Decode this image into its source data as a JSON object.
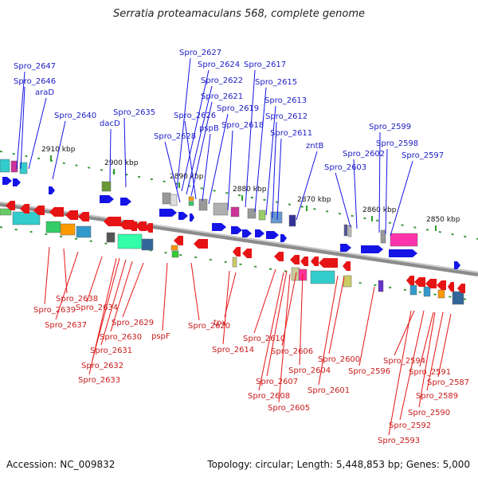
{
  "title": "Serratia proteamaculans 568, complete genome",
  "footer": {
    "accession": "Accession: NC_009832",
    "summary": "Topology: circular; Length: 5,448,853 bp; Genes: 5,000"
  },
  "ticks": [
    "2910 kbp",
    "2900 kbp",
    "2890 kbp",
    "2880 kbp",
    "2870 kbp",
    "2860 kbp",
    "2850 kbp"
  ],
  "forward_labels": [
    "Spro_2647",
    "Spro_2646",
    "araD",
    "Spro_2640",
    "dacD",
    "Spro_2635",
    "Spro_2627",
    "Spro_2624",
    "Spro_2622",
    "Spro_2621",
    "Spro_2626",
    "pspB",
    "Spro_2628",
    "Spro_2619",
    "Spro_2618",
    "Spro_2617",
    "Spro_2615",
    "Spro_2613",
    "Spro_2612",
    "Spro_2611",
    "zntB",
    "Spro_2603",
    "Spro_2602",
    "Spro_2599",
    "Spro_2598",
    "Spro_2597"
  ],
  "reverse_labels": [
    "Spro_2638",
    "Spro_2639",
    "Spro_2637",
    "Spro_2634",
    "Spro_2629",
    "Spro_2630",
    "Spro_2631",
    "Spro_2632",
    "Spro_2633",
    "pspF",
    "Spro_2620",
    "tpx",
    "Spro_2614",
    "Spro_2610",
    "Spro_2606",
    "Spro_2607",
    "Spro_2604",
    "Spro_2608",
    "Spro_2605",
    "Spro_2600",
    "Spro_2601",
    "Spro_2596",
    "Spro_2594",
    "Spro_2591",
    "Spro_2587",
    "Spro_2589",
    "Spro_2590",
    "Spro_2592",
    "Spro_2593"
  ],
  "colors": {
    "forward": "#1414e6",
    "reverse": "#e61414",
    "backbone": "#8c8c8c",
    "tick": "#2e9e2e",
    "forward_label": "#1c1cc4",
    "reverse_label": "#c81c1c"
  }
}
